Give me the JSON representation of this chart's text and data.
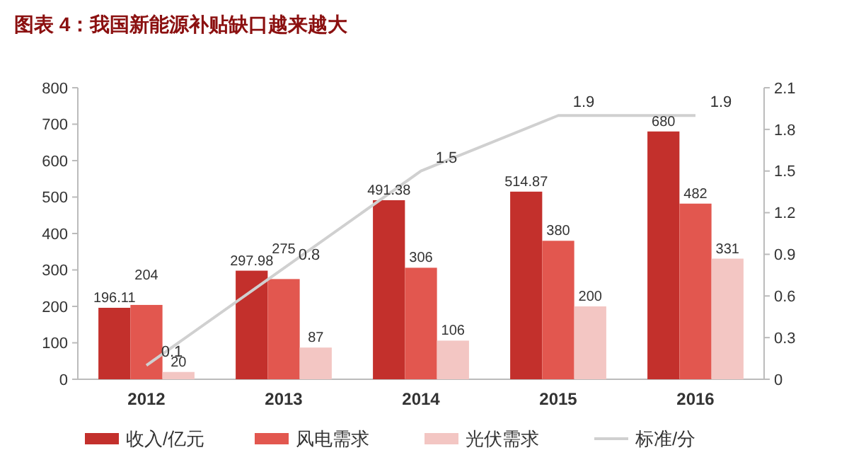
{
  "chart_data": {
    "type": "bar",
    "title": "图表 4：我国新能源补贴缺口越来越大",
    "categories": [
      "2012",
      "2013",
      "2014",
      "2015",
      "2016"
    ],
    "series": [
      {
        "name": "收入/亿元",
        "color": "#c3302c",
        "values": [
          196.11,
          297.98,
          491.38,
          514.87,
          680
        ]
      },
      {
        "name": "风电需求",
        "color": "#e2574f",
        "values": [
          204,
          275,
          306,
          380,
          482
        ]
      },
      {
        "name": "光伏需求",
        "color": "#f3c6c3",
        "values": [
          20,
          87,
          106,
          200,
          331
        ]
      },
      {
        "name": "标准/分",
        "type": "line",
        "axis": "y2",
        "color": "#d0d0d0",
        "values": [
          0.1,
          0.8,
          1.5,
          1.9,
          1.9
        ]
      }
    ],
    "ylim": [
      0,
      800
    ],
    "yticks": [
      0,
      100,
      200,
      300,
      400,
      500,
      600,
      700,
      800
    ],
    "y2lim": [
      0,
      2.1
    ],
    "y2ticks": [
      0,
      0.3,
      0.6,
      0.9,
      1.2,
      1.5,
      1.8,
      2.1
    ],
    "data_labels": true,
    "legend": "bottom",
    "grid": false,
    "marker": "none"
  }
}
